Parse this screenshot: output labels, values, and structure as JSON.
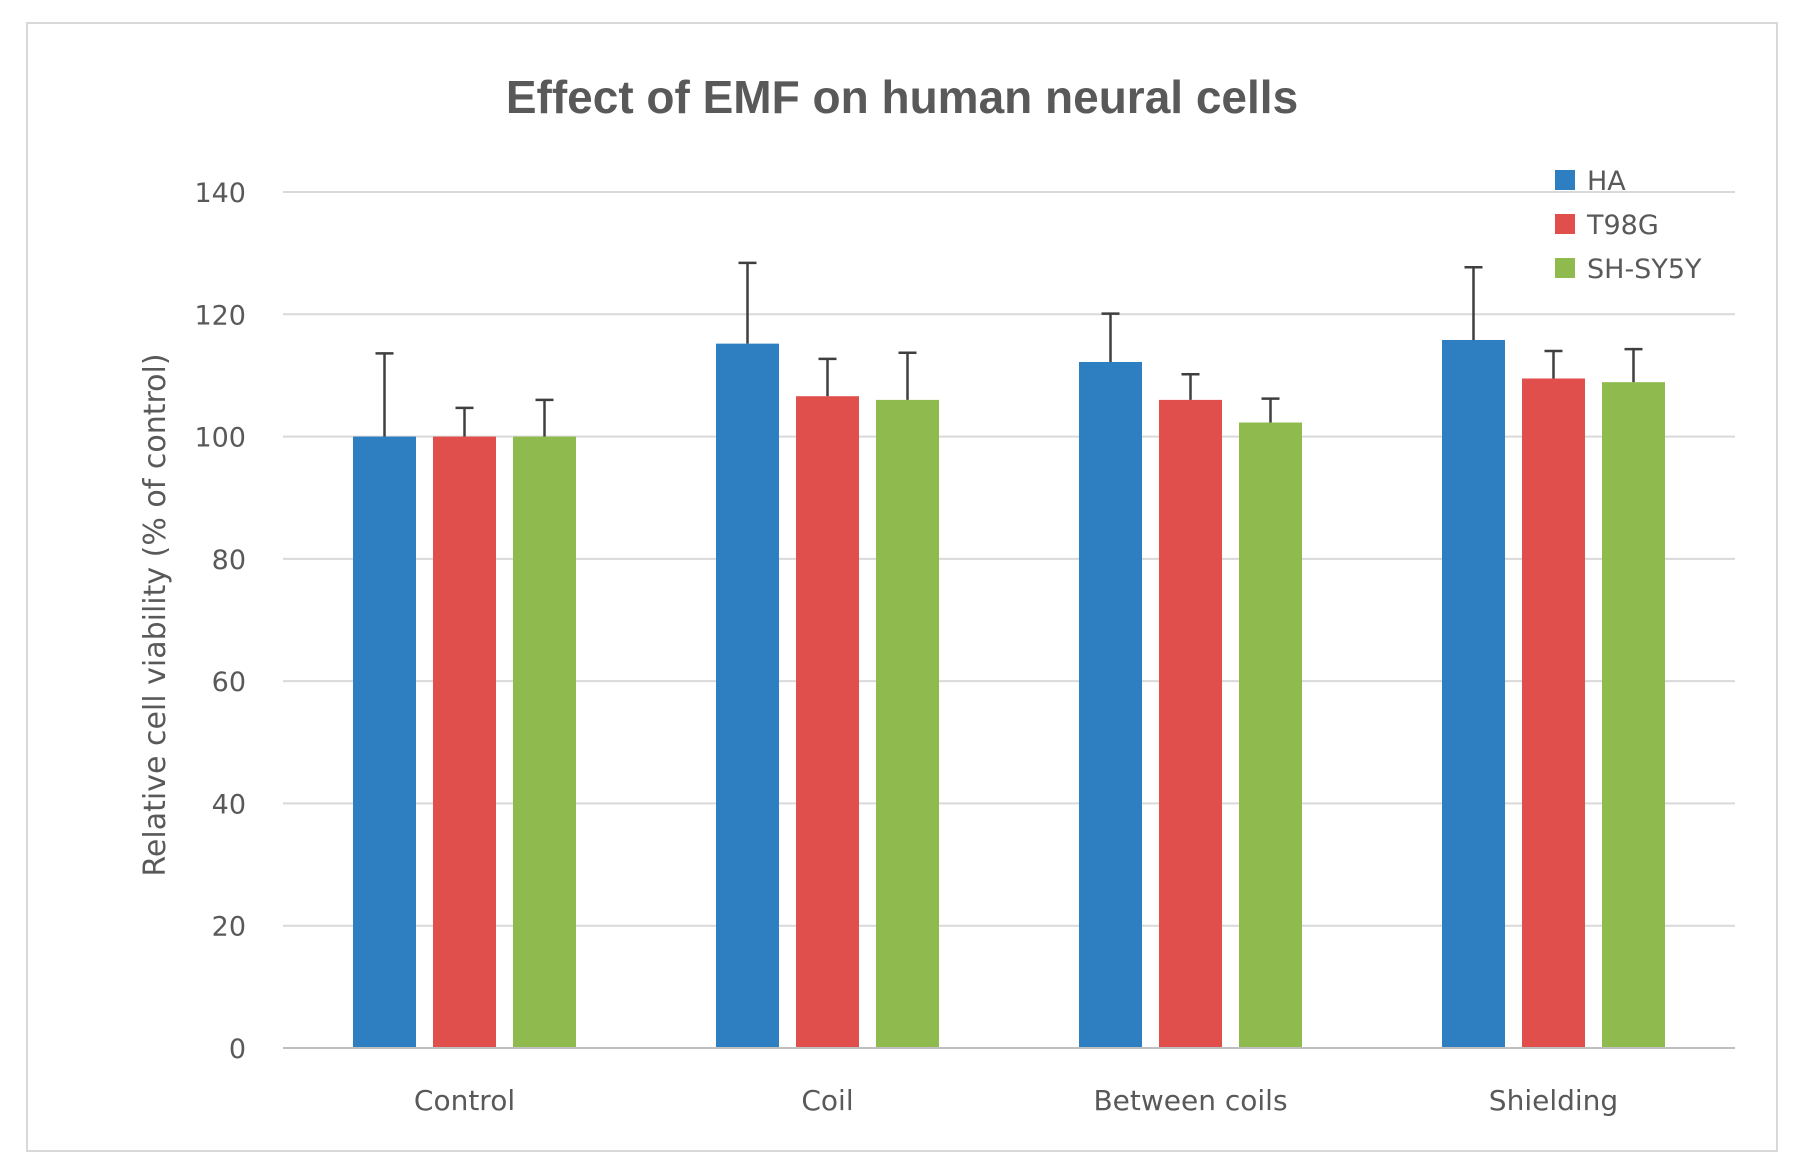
{
  "chart_data": {
    "type": "bar",
    "title": "Effect of EMF on human neural cells",
    "xlabel": "",
    "ylabel": "Relative cell viability (% of control)",
    "ylim": [
      0,
      140
    ],
    "yticks": [
      0,
      20,
      40,
      60,
      80,
      100,
      120,
      140
    ],
    "grid": true,
    "legend_position": "top-right",
    "categories": [
      "Control",
      "Coil",
      "Between coils",
      "Shielding"
    ],
    "series": [
      {
        "name": "HA",
        "color": "#2e7fc1",
        "values": [
          100,
          115.2,
          112.2,
          115.8
        ],
        "errors": [
          13.6,
          13.2,
          7.9,
          11.9
        ]
      },
      {
        "name": "T98G",
        "color": "#e04f4c",
        "values": [
          100,
          106.6,
          106.0,
          109.5
        ],
        "errors": [
          4.7,
          6.1,
          4.2,
          4.5
        ]
      },
      {
        "name": "SH-SY5Y",
        "color": "#8fbb4e",
        "values": [
          100,
          106.0,
          102.3,
          108.9
        ],
        "errors": [
          6.0,
          7.7,
          3.9,
          5.4
        ]
      }
    ]
  }
}
